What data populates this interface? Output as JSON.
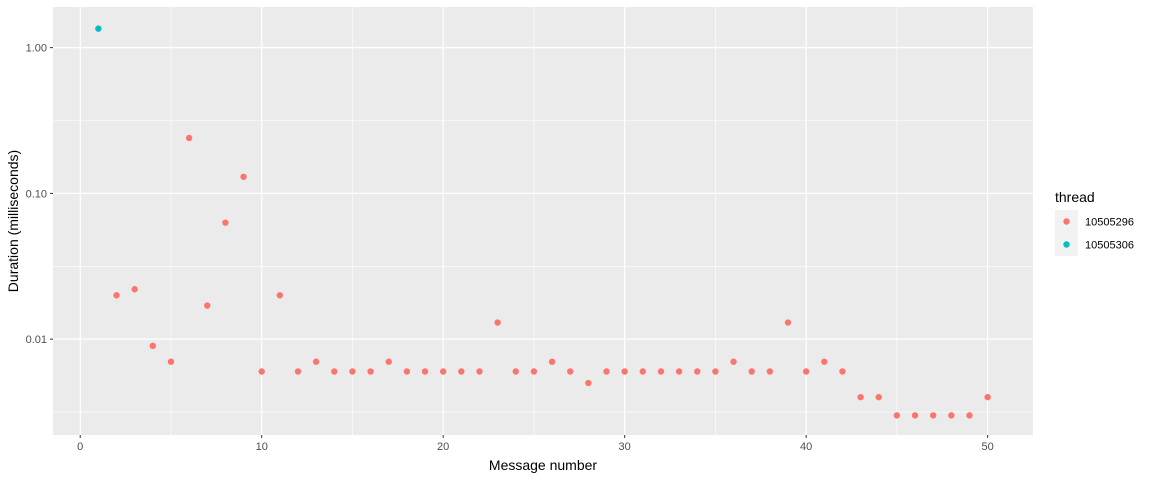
{
  "chart_data": {
    "type": "scatter",
    "xlabel": "Message number",
    "ylabel": "Duration (milliseconds)",
    "x_scale": "linear",
    "y_scale": "log10",
    "xlim": [
      -1.5,
      52.5
    ],
    "ylim": [
      0.0022,
      1.9
    ],
    "x_ticks": [
      0,
      10,
      20,
      30,
      40,
      50
    ],
    "x_tick_labels": [
      "0",
      "10",
      "20",
      "30",
      "40",
      "50"
    ],
    "y_ticks": [
      0.01,
      0.1,
      1
    ],
    "y_tick_labels": [
      "0.01",
      "0.10",
      "1.00"
    ],
    "grid": true,
    "legend": {
      "title": "thread",
      "position": "right"
    },
    "series": [
      {
        "name": "10505296",
        "color": "#F8766D",
        "x": [
          2,
          3,
          4,
          5,
          6,
          7,
          8,
          9,
          10,
          11,
          12,
          13,
          14,
          15,
          16,
          17,
          18,
          19,
          20,
          21,
          22,
          23,
          24,
          25,
          26,
          27,
          28,
          29,
          30,
          31,
          32,
          33,
          34,
          35,
          36,
          37,
          38,
          39,
          40,
          41,
          42,
          43,
          44,
          45,
          46,
          47,
          48,
          49,
          50
        ],
        "y": [
          0.02,
          0.022,
          0.009,
          0.007,
          0.24,
          0.017,
          0.063,
          0.13,
          0.006,
          0.02,
          0.006,
          0.007,
          0.006,
          0.006,
          0.006,
          0.007,
          0.006,
          0.006,
          0.006,
          0.006,
          0.006,
          0.013,
          0.006,
          0.006,
          0.007,
          0.006,
          0.005,
          0.006,
          0.006,
          0.006,
          0.006,
          0.006,
          0.006,
          0.006,
          0.007,
          0.006,
          0.006,
          0.013,
          0.006,
          0.007,
          0.006,
          0.004,
          0.004,
          0.003,
          0.003,
          0.003,
          0.003,
          0.003,
          0.004
        ]
      },
      {
        "name": "10505306",
        "color": "#00BFC4",
        "x": [
          1
        ],
        "y": [
          1.35
        ]
      }
    ]
  }
}
